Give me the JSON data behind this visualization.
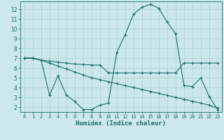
{
  "xlabel": "Humidex (Indice chaleur)",
  "bg_color": "#cce8ec",
  "line_color": "#1a6b6b",
  "grid_color": "#aacfd4",
  "xlim": [
    -0.5,
    23.5
  ],
  "ylim": [
    1.5,
    12.8
  ],
  "xticks": [
    0,
    1,
    2,
    3,
    4,
    5,
    6,
    7,
    8,
    9,
    10,
    11,
    12,
    13,
    14,
    15,
    16,
    17,
    18,
    19,
    20,
    21,
    22,
    23
  ],
  "yticks": [
    2,
    3,
    4,
    5,
    6,
    7,
    8,
    9,
    10,
    11,
    12
  ],
  "series1_x": [
    0,
    1,
    2,
    3,
    4,
    5,
    6,
    7,
    8,
    9,
    10,
    11,
    12,
    13,
    14,
    15,
    16,
    17,
    18,
    19,
    20,
    21,
    22,
    23
  ],
  "series1_y": [
    7.0,
    7.0,
    6.8,
    6.7,
    6.6,
    6.5,
    6.4,
    6.35,
    6.3,
    6.3,
    5.5,
    5.5,
    5.5,
    5.5,
    5.5,
    5.5,
    5.5,
    5.5,
    5.5,
    6.5,
    6.5,
    6.5,
    6.5,
    6.5
  ],
  "series2_x": [
    0,
    1,
    2,
    3,
    4,
    5,
    6,
    7,
    8,
    9,
    10,
    11,
    12,
    13,
    14,
    15,
    16,
    17,
    18,
    19,
    20,
    21,
    22,
    23
  ],
  "series2_y": [
    7.0,
    7.0,
    6.8,
    3.2,
    5.2,
    3.2,
    2.6,
    1.75,
    1.75,
    2.2,
    2.4,
    7.6,
    9.4,
    11.5,
    12.2,
    12.5,
    12.1,
    10.7,
    9.5,
    4.2,
    4.1,
    5.0,
    3.1,
    1.75
  ],
  "series3_x": [
    0,
    1,
    2,
    3,
    4,
    5,
    6,
    7,
    8,
    9,
    10,
    11,
    12,
    13,
    14,
    15,
    16,
    17,
    18,
    19,
    20,
    21,
    22,
    23
  ],
  "series3_y": [
    7.0,
    7.0,
    6.8,
    6.5,
    6.2,
    5.9,
    5.6,
    5.3,
    5.0,
    4.8,
    4.6,
    4.4,
    4.2,
    4.0,
    3.8,
    3.6,
    3.4,
    3.2,
    3.0,
    2.8,
    2.6,
    2.4,
    2.2,
    1.9
  ]
}
